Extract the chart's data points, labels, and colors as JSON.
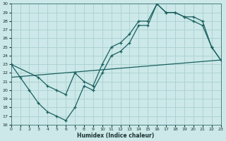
{
  "xlabel": "Humidex (Indice chaleur)",
  "bg_color": "#cce8e8",
  "grid_color": "#aad0d0",
  "line_color": "#1a6060",
  "xlim": [
    0,
    23
  ],
  "ylim": [
    16,
    30
  ],
  "xticks": [
    0,
    1,
    2,
    3,
    4,
    5,
    6,
    7,
    8,
    9,
    10,
    11,
    12,
    13,
    14,
    15,
    16,
    17,
    18,
    19,
    20,
    21,
    22,
    23
  ],
  "yticks": [
    16,
    17,
    18,
    19,
    20,
    21,
    22,
    23,
    24,
    25,
    26,
    27,
    28,
    29,
    30
  ],
  "line1_x": [
    0,
    1,
    2,
    3,
    4,
    5,
    6,
    7,
    8,
    9,
    10,
    11,
    12,
    13,
    14,
    15,
    16,
    17,
    18,
    19,
    20,
    21,
    22,
    23
  ],
  "line1_y": [
    23,
    21.5,
    20,
    18.5,
    17.5,
    17,
    16.5,
    18,
    20.5,
    20,
    22,
    24,
    24.5,
    25.5,
    27.5,
    27.5,
    30,
    29,
    29,
    28.5,
    28,
    27.5,
    25,
    23.5
  ],
  "line2_x": [
    0,
    3,
    4,
    5,
    6,
    7,
    8,
    9,
    10,
    11,
    12,
    13,
    14,
    15,
    16,
    17,
    18,
    19,
    20,
    21,
    22,
    23
  ],
  "line2_y": [
    23,
    21.5,
    20.5,
    20,
    19.5,
    22,
    21,
    20.5,
    23,
    25,
    25.5,
    26.5,
    28,
    28,
    30,
    29,
    29,
    28.5,
    28.5,
    28,
    25,
    23.5
  ],
  "line3_x": [
    0,
    23
  ],
  "line3_y": [
    21.5,
    23.5
  ]
}
